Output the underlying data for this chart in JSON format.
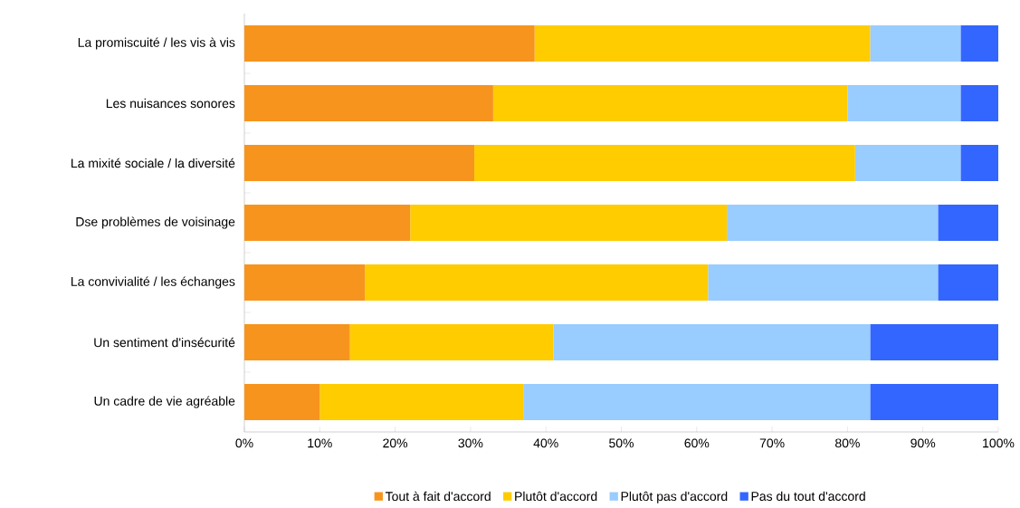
{
  "chart_data": {
    "type": "bar",
    "orientation": "horizontal",
    "stacked": true,
    "legend": "bottom",
    "categories": [
      "La promiscuité / les vis à vis",
      "Les nuisances sonores",
      "La mixité sociale / la diversité",
      "Dse problèmes de voisinage",
      "La convivialité / les échanges",
      "Un sentiment d'insécurité",
      "Un cadre de vie agréable"
    ],
    "series": [
      {
        "name": "Tout à fait d'accord",
        "color": "#f7941d",
        "values": [
          38.5,
          33,
          30.5,
          22,
          16,
          14,
          10
        ]
      },
      {
        "name": "Plutôt d'accord",
        "color": "#ffcc00",
        "values": [
          44.5,
          47,
          50.5,
          42,
          45.5,
          27,
          27
        ]
      },
      {
        "name": "Plutôt pas d'accord",
        "color": "#99ccff",
        "values": [
          12,
          15,
          14,
          28,
          30.5,
          42,
          46
        ]
      },
      {
        "name": "Pas du tout d'accord",
        "color": "#3366ff",
        "values": [
          5,
          5,
          5,
          8,
          8,
          17,
          17
        ]
      }
    ],
    "xlim": [
      0,
      100
    ],
    "xticks": [
      {
        "value": 0,
        "label": "0%"
      },
      {
        "value": 10,
        "label": "10%"
      },
      {
        "value": 20,
        "label": "20%"
      },
      {
        "value": 30,
        "label": "30%"
      },
      {
        "value": 40,
        "label": "40%"
      },
      {
        "value": 50,
        "label": "50%"
      },
      {
        "value": 60,
        "label": "60%"
      },
      {
        "value": 70,
        "label": "70%"
      },
      {
        "value": 80,
        "label": "80%"
      },
      {
        "value": 90,
        "label": "90%"
      },
      {
        "value": 100,
        "label": "100%"
      }
    ]
  }
}
